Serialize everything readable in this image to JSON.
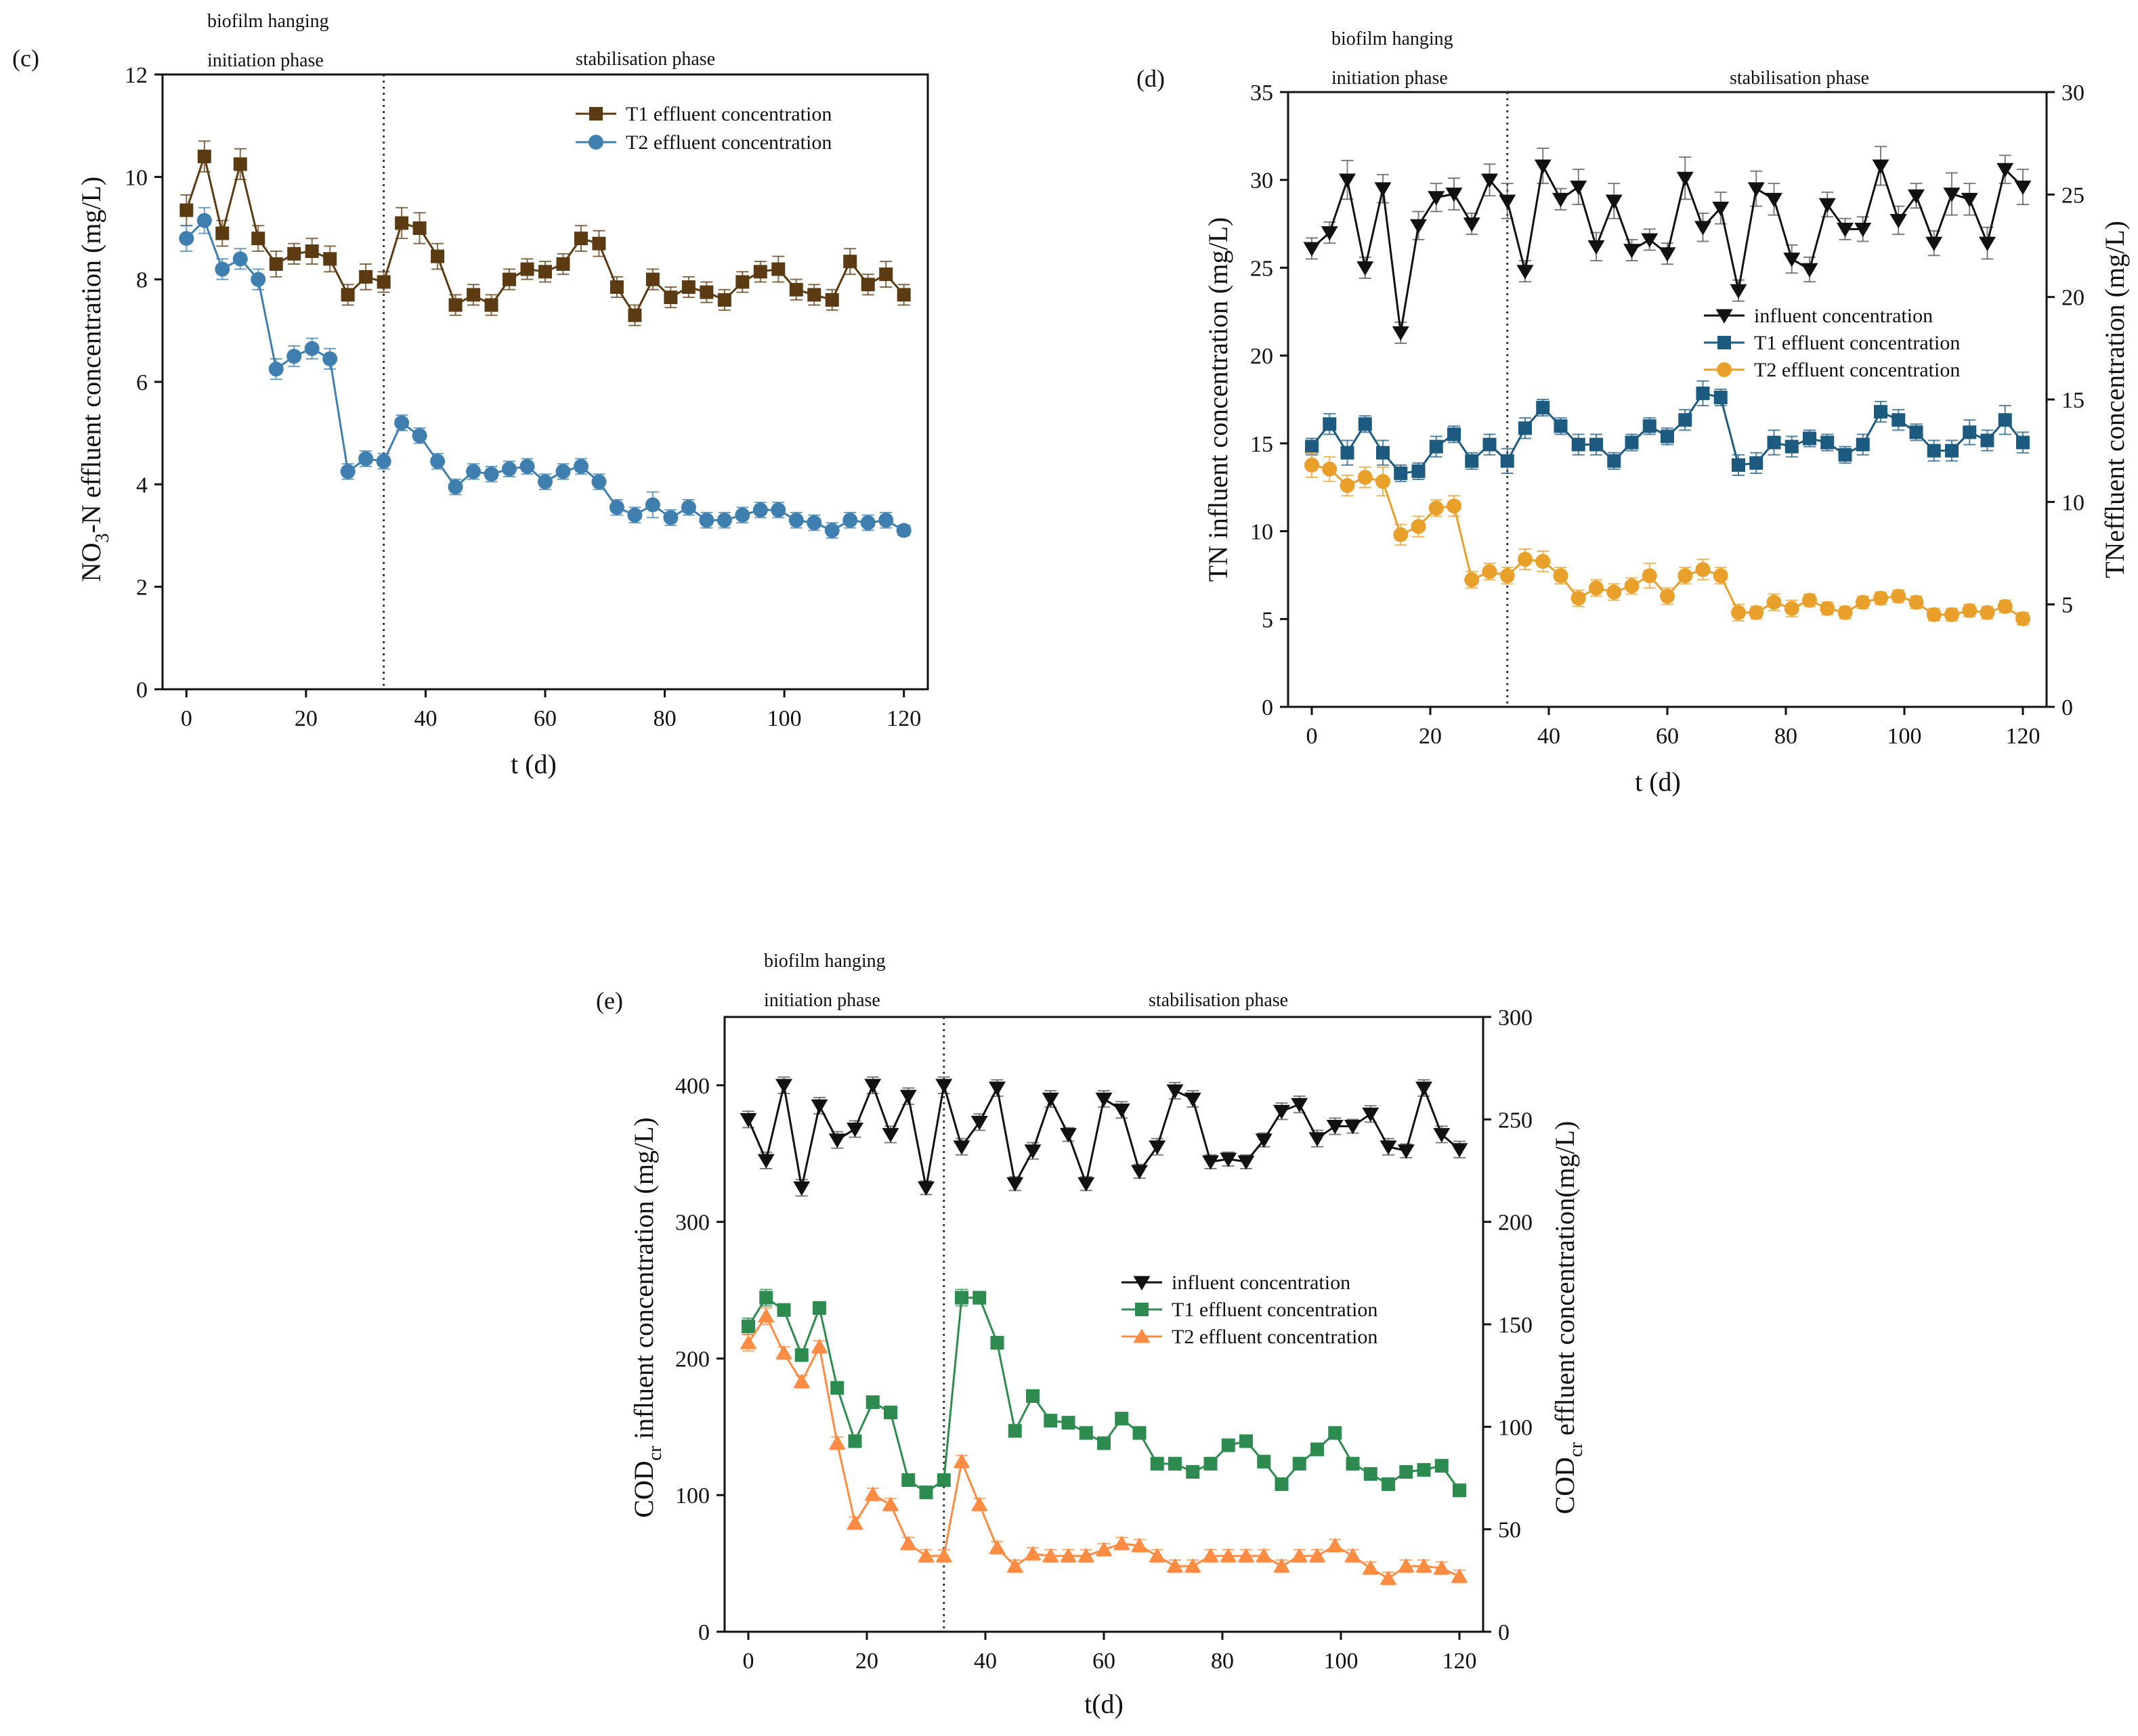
{
  "chart_data": [
    {
      "panel": "(c)",
      "type": "line",
      "phase_labels": [
        "biofilm hanging",
        "initiation phase",
        "stabilisation phase"
      ],
      "phase_boundary_x": 33,
      "xlabel": "t (d)",
      "ylabel_parts": [
        "NO",
        "3",
        "-N effluent concentration (mg/L)"
      ],
      "xlim": [
        -4,
        124
      ],
      "ylim": [
        0,
        12
      ],
      "xticks": [
        0,
        20,
        40,
        60,
        80,
        100,
        120
      ],
      "yticks": [
        0,
        2,
        4,
        6,
        8,
        10,
        12
      ],
      "ytick_labels": [
        "0",
        "2",
        "4",
        "6",
        "8",
        "10",
        "12"
      ],
      "legend_position": "top-right",
      "x": [
        0,
        3,
        6,
        9,
        12,
        15,
        18,
        21,
        24,
        27,
        30,
        33,
        36,
        39,
        42,
        45,
        48,
        51,
        54,
        57,
        60,
        63,
        66,
        69,
        72,
        75,
        78,
        81,
        84,
        87,
        90,
        93,
        96,
        99,
        102,
        105,
        108,
        111,
        114,
        117,
        120
      ],
      "series": [
        {
          "name": "T1 effluent concentration",
          "marker": "square",
          "color": "#5c3a12",
          "axis": "left",
          "values": [
            9.35,
            10.4,
            8.9,
            10.25,
            8.8,
            8.3,
            8.5,
            8.55,
            8.4,
            7.7,
            8.05,
            7.95,
            9.1,
            9.0,
            8.45,
            7.5,
            7.7,
            7.5,
            8.0,
            8.2,
            8.15,
            8.3,
            8.8,
            8.7,
            7.85,
            7.3,
            8.0,
            7.65,
            7.85,
            7.75,
            7.6,
            7.95,
            8.15,
            8.2,
            7.8,
            7.7,
            7.6,
            8.35,
            7.9,
            8.1,
            7.7
          ],
          "errors": [
            0.3,
            0.3,
            0.25,
            0.3,
            0.25,
            0.25,
            0.2,
            0.25,
            0.25,
            0.2,
            0.25,
            0.2,
            0.3,
            0.3,
            0.25,
            0.2,
            0.2,
            0.2,
            0.2,
            0.2,
            0.2,
            0.2,
            0.25,
            0.25,
            0.2,
            0.2,
            0.2,
            0.2,
            0.2,
            0.2,
            0.2,
            0.2,
            0.2,
            0.25,
            0.2,
            0.2,
            0.2,
            0.25,
            0.2,
            0.25,
            0.2
          ]
        },
        {
          "name": "T2 effluent concentration",
          "marker": "circle",
          "color": "#3f7fb0",
          "axis": "left",
          "values": [
            8.8,
            9.15,
            8.2,
            8.4,
            8.0,
            6.25,
            6.5,
            6.65,
            6.45,
            4.25,
            4.5,
            4.45,
            5.2,
            4.95,
            4.45,
            3.95,
            4.25,
            4.2,
            4.3,
            4.35,
            4.05,
            4.25,
            4.35,
            4.05,
            3.55,
            3.4,
            3.6,
            3.35,
            3.55,
            3.3,
            3.3,
            3.4,
            3.5,
            3.5,
            3.3,
            3.25,
            3.1,
            3.3,
            3.25,
            3.3,
            3.1
          ],
          "errors": [
            0.25,
            0.25,
            0.2,
            0.2,
            0.2,
            0.2,
            0.2,
            0.2,
            0.2,
            0.15,
            0.15,
            0.15,
            0.15,
            0.15,
            0.15,
            0.15,
            0.15,
            0.15,
            0.15,
            0.15,
            0.15,
            0.15,
            0.15,
            0.15,
            0.15,
            0.15,
            0.25,
            0.15,
            0.15,
            0.15,
            0.15,
            0.15,
            0.15,
            0.15,
            0.15,
            0.15,
            0.15,
            0.15,
            0.15,
            0.15,
            0.1
          ]
        }
      ]
    },
    {
      "panel": "(d)",
      "type": "line",
      "phase_labels": [
        "biofilm hanging",
        "initiation phase",
        "stabilisation phase"
      ],
      "phase_boundary_x": 33,
      "xlabel": "t (d)",
      "ylabel_left_parts": [
        "TN influent concentration (mg/L)"
      ],
      "ylabel_right_parts": [
        "TNeffluent concentration (mg/L)"
      ],
      "xlim": [
        -4,
        124
      ],
      "ylim_left": [
        0,
        35
      ],
      "ylim_right": [
        0,
        30
      ],
      "xticks": [
        0,
        20,
        40,
        60,
        80,
        100,
        120
      ],
      "yticks_left": [
        0,
        5,
        10,
        15,
        20,
        25,
        30,
        35
      ],
      "yticks_right": [
        0,
        5,
        10,
        15,
        20,
        25,
        30
      ],
      "legend_position": "center-right",
      "x": [
        0,
        3,
        6,
        9,
        12,
        15,
        18,
        21,
        24,
        27,
        30,
        33,
        36,
        39,
        42,
        45,
        48,
        51,
        54,
        57,
        60,
        63,
        66,
        69,
        72,
        75,
        78,
        81,
        84,
        87,
        90,
        93,
        96,
        99,
        102,
        105,
        108,
        111,
        114,
        117,
        120
      ],
      "series": [
        {
          "name": "influent concentration",
          "marker": "triangle-down",
          "color": "#111111",
          "axis": "left",
          "values": [
            26.1,
            27.0,
            30.0,
            25.0,
            29.5,
            21.3,
            27.4,
            29.0,
            29.2,
            27.5,
            30.0,
            28.8,
            24.8,
            30.8,
            28.9,
            29.6,
            26.2,
            28.8,
            26.0,
            26.6,
            25.8,
            30.1,
            27.3,
            28.4,
            23.7,
            29.5,
            28.9,
            25.5,
            24.9,
            28.6,
            27.2,
            27.2,
            30.8,
            27.7,
            29.1,
            26.4,
            29.2,
            28.9,
            26.4,
            30.6,
            29.6
          ],
          "errors": [
            0.6,
            0.6,
            1.1,
            0.6,
            0.8,
            0.6,
            0.8,
            0.8,
            0.9,
            0.6,
            0.9,
            1.0,
            0.6,
            1.0,
            0.6,
            1.0,
            0.8,
            1.0,
            0.6,
            0.6,
            0.6,
            1.2,
            0.8,
            0.9,
            0.6,
            1.0,
            0.9,
            0.8,
            0.7,
            0.7,
            0.6,
            0.7,
            1.1,
            0.8,
            0.7,
            0.7,
            1.2,
            0.9,
            0.9,
            0.8,
            1.0
          ]
        },
        {
          "name": "T1 effluent concentration",
          "marker": "square",
          "color": "#1d5a80",
          "axis": "right",
          "values": [
            12.7,
            13.8,
            12.4,
            13.8,
            12.4,
            11.4,
            11.5,
            12.7,
            13.3,
            12.0,
            12.8,
            12.0,
            13.6,
            14.6,
            13.7,
            12.8,
            12.8,
            12.0,
            12.9,
            13.7,
            13.2,
            14.0,
            15.3,
            15.1,
            11.8,
            11.9,
            12.9,
            12.7,
            13.1,
            12.9,
            12.3,
            12.8,
            14.4,
            14.0,
            13.4,
            12.5,
            12.5,
            13.4,
            13.0,
            14.0,
            12.9
          ],
          "errors": [
            0.4,
            0.5,
            0.6,
            0.4,
            0.6,
            0.4,
            0.4,
            0.5,
            0.4,
            0.4,
            0.5,
            0.6,
            0.5,
            0.4,
            0.4,
            0.5,
            0.5,
            0.4,
            0.4,
            0.4,
            0.4,
            0.5,
            0.6,
            0.4,
            0.5,
            0.5,
            0.6,
            0.5,
            0.4,
            0.4,
            0.4,
            0.5,
            0.5,
            0.5,
            0.4,
            0.5,
            0.5,
            0.6,
            0.5,
            0.7,
            0.5
          ]
        },
        {
          "name": "T2 effluent concentration",
          "marker": "circle",
          "color": "#e8a02a",
          "axis": "right",
          "values": [
            11.8,
            11.6,
            10.8,
            11.2,
            11.0,
            8.4,
            8.8,
            9.7,
            9.8,
            6.2,
            6.6,
            6.4,
            7.2,
            7.1,
            6.4,
            5.3,
            5.8,
            5.6,
            5.9,
            6.4,
            5.4,
            6.4,
            6.7,
            6.4,
            4.6,
            4.6,
            5.1,
            4.8,
            5.2,
            4.8,
            4.6,
            5.1,
            5.3,
            5.4,
            5.1,
            4.5,
            4.5,
            4.7,
            4.6,
            4.9,
            4.3
          ],
          "errors": [
            0.6,
            0.6,
            0.5,
            0.5,
            0.7,
            0.5,
            0.5,
            0.4,
            0.5,
            0.4,
            0.4,
            0.4,
            0.5,
            0.5,
            0.4,
            0.4,
            0.4,
            0.4,
            0.4,
            0.6,
            0.4,
            0.4,
            0.5,
            0.4,
            0.4,
            0.3,
            0.4,
            0.4,
            0.3,
            0.3,
            0.3,
            0.3,
            0.3,
            0.3,
            0.3,
            0.3,
            0.3,
            0.3,
            0.3,
            0.3,
            0.3
          ]
        }
      ]
    },
    {
      "panel": "(e)",
      "type": "line",
      "phase_labels": [
        "biofilm hanging",
        "initiation phase",
        "stabilisation phase"
      ],
      "phase_boundary_x": 33,
      "xlabel": "t(d)",
      "ylabel_left_parts": [
        "COD",
        "cr",
        " influent concentration (mg/L)"
      ],
      "ylabel_right_parts": [
        "COD",
        "cr",
        " effluent concentration(mg/L)"
      ],
      "xlim": [
        -4,
        124
      ],
      "ylim_left": [
        0,
        450
      ],
      "ylim_right": [
        0,
        300
      ],
      "xticks": [
        0,
        20,
        40,
        60,
        80,
        100,
        120
      ],
      "yticks_left": [
        0,
        100,
        200,
        300,
        400
      ],
      "yticks_right": [
        0,
        50,
        100,
        150,
        200,
        250,
        300
      ],
      "legend_position": "center-right",
      "x": [
        0,
        3,
        6,
        9,
        12,
        15,
        18,
        21,
        24,
        27,
        30,
        33,
        36,
        39,
        42,
        45,
        48,
        51,
        54,
        57,
        60,
        63,
        66,
        69,
        72,
        75,
        78,
        81,
        84,
        87,
        90,
        93,
        96,
        99,
        102,
        105,
        108,
        111,
        114,
        117,
        120
      ],
      "series": [
        {
          "name": "influent concentration",
          "marker": "triangle-down",
          "color": "#111111",
          "axis": "left",
          "values": [
            375,
            345,
            400,
            325,
            385,
            360,
            368,
            400,
            364,
            392,
            325,
            400,
            355,
            373,
            398,
            328,
            352,
            390,
            364,
            328,
            390,
            382,
            337,
            355,
            396,
            390,
            344,
            346,
            344,
            360,
            381,
            386,
            361,
            370,
            370,
            379,
            355,
            352,
            398,
            364,
            353
          ],
          "errors": [
            6,
            6,
            6,
            6,
            6,
            6,
            6,
            6,
            6,
            6,
            5,
            6,
            6,
            6,
            6,
            5,
            6,
            6,
            5,
            5,
            6,
            6,
            5,
            6,
            6,
            6,
            5,
            5,
            5,
            5,
            6,
            6,
            6,
            6,
            5,
            6,
            6,
            5,
            6,
            6,
            6
          ]
        },
        {
          "name": "T1 effluent concentration",
          "marker": "square",
          "color": "#2e8b4f",
          "axis": "right",
          "values": [
            149,
            163,
            157,
            135,
            158,
            119,
            93,
            112,
            107,
            74,
            68,
            74,
            163,
            163,
            141,
            98,
            115,
            103,
            102,
            97,
            92,
            104,
            97,
            82,
            82,
            78,
            82,
            91,
            93,
            83,
            72,
            82,
            89,
            97,
            82,
            77,
            72,
            78,
            79,
            81,
            69
          ],
          "errors": [
            4,
            4,
            3,
            3,
            3,
            3,
            3,
            3,
            3,
            3,
            3,
            3,
            4,
            3,
            3,
            3,
            3,
            3,
            3,
            3,
            3,
            3,
            3,
            3,
            3,
            3,
            3,
            3,
            3,
            3,
            3,
            3,
            3,
            3,
            3,
            3,
            3,
            3,
            3,
            3,
            3
          ]
        },
        {
          "name": "T2 effluent concentration",
          "marker": "triangle-up",
          "color": "#ff8c42",
          "axis": "right",
          "values": [
            141,
            154,
            136,
            122,
            139,
            92,
            53,
            67,
            62,
            43,
            37,
            37,
            83,
            62,
            41,
            32,
            38,
            37,
            37,
            37,
            40,
            43,
            42,
            37,
            32,
            32,
            37,
            37,
            37,
            37,
            32,
            37,
            37,
            42,
            37,
            31,
            26,
            32,
            32,
            31,
            27
          ],
          "errors": [
            4,
            4,
            3,
            3,
            3,
            3,
            3,
            3,
            3,
            3,
            3,
            3,
            3,
            3,
            3,
            3,
            3,
            3,
            3,
            3,
            3,
            3,
            3,
            3,
            3,
            3,
            3,
            3,
            3,
            3,
            3,
            3,
            3,
            3,
            3,
            3,
            3,
            3,
            3,
            3,
            3
          ]
        }
      ]
    }
  ]
}
